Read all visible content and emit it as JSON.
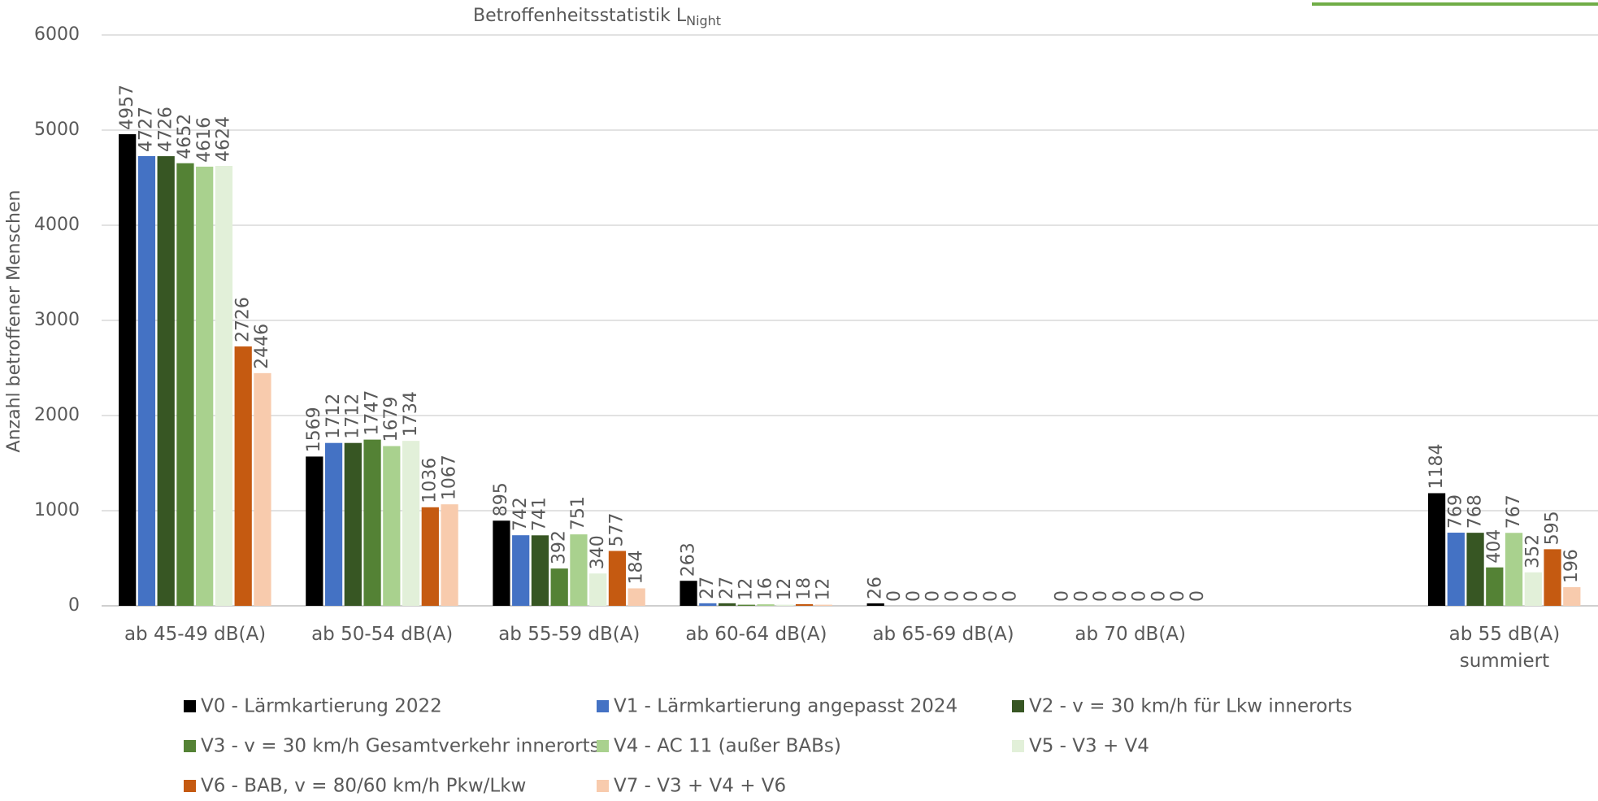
{
  "chart_data": {
    "type": "bar",
    "title": "Betroffenheitsstatistik L",
    "title_subscript": "Night",
    "ylabel": "Anzahl betroffener Menschen",
    "categories": [
      "ab 45-49 dB(A)",
      "ab 50-54 dB(A)",
      "ab 55-59 dB(A)",
      "ab 60-64 dB(A)",
      "ab 65-69 dB(A)",
      "ab 70 dB(A)",
      null,
      "ab 55 dB(A)\nsummiert"
    ],
    "series": [
      {
        "name": "V0 - Lärmkartierung 2022",
        "color": "#000000",
        "values": [
          4957,
          1569,
          895,
          263,
          26,
          0,
          null,
          1184
        ]
      },
      {
        "name": "V1 - Lärmkartierung angepasst 2024",
        "color": "#4472c4",
        "values": [
          4727,
          1712,
          742,
          27,
          0,
          0,
          null,
          769
        ]
      },
      {
        "name": "V2 - v = 30 km/h für Lkw innerorts",
        "color": "#375623",
        "values": [
          4726,
          1712,
          741,
          27,
          0,
          0,
          null,
          768
        ]
      },
      {
        "name": "V3 - v = 30 km/h Gesamtverkehr innerorts",
        "color": "#548235",
        "values": [
          4652,
          1747,
          392,
          12,
          0,
          0,
          null,
          404
        ]
      },
      {
        "name": "V4 - AC 11 (außer BABs)",
        "color": "#a9d18e",
        "values": [
          4616,
          1679,
          751,
          16,
          0,
          0,
          null,
          767
        ]
      },
      {
        "name": "V5 - V3 + V4",
        "color": "#e2f0d9",
        "values": [
          4624,
          1734,
          340,
          12,
          0,
          0,
          null,
          352
        ]
      },
      {
        "name": "V6 - BAB, v = 80/60 km/h Pkw/Lkw",
        "color": "#c55a11",
        "values": [
          2726,
          1036,
          577,
          18,
          0,
          0,
          null,
          595
        ]
      },
      {
        "name": "V7 - V3 + V4 + V6",
        "color": "#f8cbad",
        "values": [
          2446,
          1067,
          184,
          12,
          0,
          0,
          null,
          196
        ]
      }
    ],
    "ylim": [
      0,
      6000
    ],
    "yticks": [
      0,
      1000,
      2000,
      3000,
      4000,
      5000,
      6000
    ],
    "grid": true,
    "legend": "bottom"
  }
}
